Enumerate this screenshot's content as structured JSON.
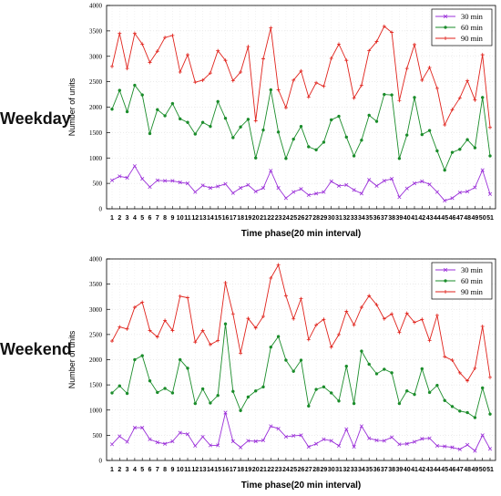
{
  "chart_data": [
    {
      "type": "line",
      "row_label": "Weekday",
      "xlabel": "Time phase(20 min interval)",
      "ylabel": "Number of units",
      "ylim": [
        0,
        4000
      ],
      "yticks": [
        0,
        500,
        1000,
        1500,
        2000,
        2500,
        3000,
        3500,
        4000
      ],
      "x": [
        1,
        2,
        3,
        4,
        5,
        6,
        7,
        8,
        9,
        10,
        11,
        12,
        13,
        14,
        15,
        16,
        17,
        18,
        19,
        20,
        21,
        22,
        23,
        24,
        25,
        26,
        27,
        28,
        29,
        30,
        31,
        32,
        33,
        34,
        35,
        36,
        37,
        38,
        39,
        40,
        41,
        42,
        43,
        44,
        45,
        46,
        47,
        48,
        49,
        50,
        51
      ],
      "grid": true,
      "legend_position": "top-right",
      "series": [
        {
          "name": "30 min",
          "color": "#9b30d9",
          "marker": "x",
          "values": [
            560,
            640,
            610,
            840,
            590,
            430,
            560,
            550,
            550,
            520,
            500,
            330,
            460,
            410,
            440,
            490,
            310,
            410,
            470,
            340,
            410,
            750,
            410,
            210,
            330,
            390,
            270,
            300,
            330,
            540,
            450,
            470,
            370,
            300,
            570,
            450,
            550,
            590,
            230,
            400,
            500,
            540,
            480,
            330,
            160,
            210,
            320,
            340,
            420,
            760,
            290
          ]
        },
        {
          "name": "60 min",
          "color": "#1a8c2a",
          "marker": "circle",
          "values": [
            1960,
            2330,
            1910,
            2430,
            2240,
            1480,
            1950,
            1830,
            2070,
            1770,
            1700,
            1470,
            1700,
            1620,
            2110,
            1780,
            1400,
            1610,
            1760,
            1000,
            1550,
            2340,
            1510,
            990,
            1370,
            1620,
            1220,
            1160,
            1310,
            1750,
            1820,
            1410,
            1040,
            1350,
            1840,
            1720,
            2250,
            2240,
            990,
            1450,
            2190,
            1460,
            1540,
            1140,
            760,
            1110,
            1170,
            1360,
            1200,
            2190,
            1040
          ]
        },
        {
          "name": "90 min",
          "color": "#e0221b",
          "marker": "plus",
          "values": [
            2800,
            3450,
            2760,
            3450,
            3240,
            2880,
            3100,
            3370,
            3410,
            2690,
            3030,
            2490,
            2530,
            2670,
            3110,
            2920,
            2520,
            2690,
            3190,
            1730,
            2950,
            3560,
            2340,
            1990,
            2530,
            2710,
            2200,
            2480,
            2410,
            2960,
            3240,
            2920,
            2180,
            2430,
            3110,
            3290,
            3590,
            3470,
            2130,
            2760,
            3230,
            2530,
            2780,
            2370,
            1650,
            1950,
            2180,
            2520,
            2140,
            3030,
            1600
          ]
        }
      ]
    },
    {
      "type": "line",
      "row_label": "Weekend",
      "xlabel": "Time phase(20 min interval)",
      "ylabel": "Number of units",
      "ylim": [
        0,
        4000
      ],
      "yticks": [
        0,
        500,
        1000,
        1500,
        2000,
        2500,
        3000,
        3500,
        4000
      ],
      "x": [
        1,
        2,
        3,
        4,
        5,
        6,
        7,
        8,
        9,
        10,
        11,
        12,
        13,
        14,
        15,
        16,
        17,
        18,
        19,
        20,
        21,
        22,
        23,
        24,
        25,
        26,
        27,
        28,
        29,
        30,
        31,
        32,
        33,
        34,
        35,
        36,
        37,
        38,
        39,
        40,
        41,
        42,
        43,
        44,
        45,
        46,
        47,
        48,
        49,
        50,
        51
      ],
      "grid": true,
      "legend_position": "top-right",
      "series": [
        {
          "name": "30 min",
          "color": "#9b30d9",
          "marker": "x",
          "values": [
            320,
            480,
            370,
            650,
            650,
            420,
            360,
            330,
            380,
            550,
            520,
            290,
            470,
            300,
            300,
            950,
            380,
            260,
            390,
            380,
            400,
            680,
            630,
            470,
            490,
            500,
            270,
            330,
            420,
            390,
            290,
            620,
            270,
            680,
            440,
            400,
            390,
            460,
            320,
            330,
            370,
            430,
            440,
            290,
            280,
            260,
            220,
            310,
            190,
            500,
            230
          ]
        },
        {
          "name": "60 min",
          "color": "#1a8c2a",
          "marker": "circle",
          "values": [
            1340,
            1480,
            1330,
            2000,
            2080,
            1580,
            1350,
            1430,
            1340,
            2000,
            1830,
            1130,
            1420,
            1140,
            1290,
            2710,
            1370,
            990,
            1260,
            1380,
            1460,
            2250,
            2460,
            1990,
            1770,
            1990,
            1080,
            1410,
            1460,
            1340,
            1180,
            1870,
            1130,
            2170,
            1910,
            1720,
            1810,
            1740,
            1130,
            1380,
            1310,
            1820,
            1350,
            1490,
            1190,
            1070,
            980,
            950,
            850,
            1440,
            920
          ]
        },
        {
          "name": "90 min",
          "color": "#e0221b",
          "marker": "plus",
          "values": [
            2370,
            2650,
            2610,
            3040,
            3140,
            2580,
            2450,
            2780,
            2580,
            3260,
            3230,
            2350,
            2580,
            2300,
            2380,
            3530,
            2910,
            2130,
            2820,
            2630,
            2860,
            3620,
            3880,
            3270,
            2810,
            3210,
            2400,
            2690,
            2800,
            2250,
            2500,
            2960,
            2690,
            3040,
            3270,
            3090,
            2810,
            2910,
            2540,
            2920,
            2740,
            2800,
            2380,
            2880,
            2060,
            1990,
            1740,
            1580,
            1830,
            2660,
            1650
          ]
        }
      ]
    }
  ]
}
